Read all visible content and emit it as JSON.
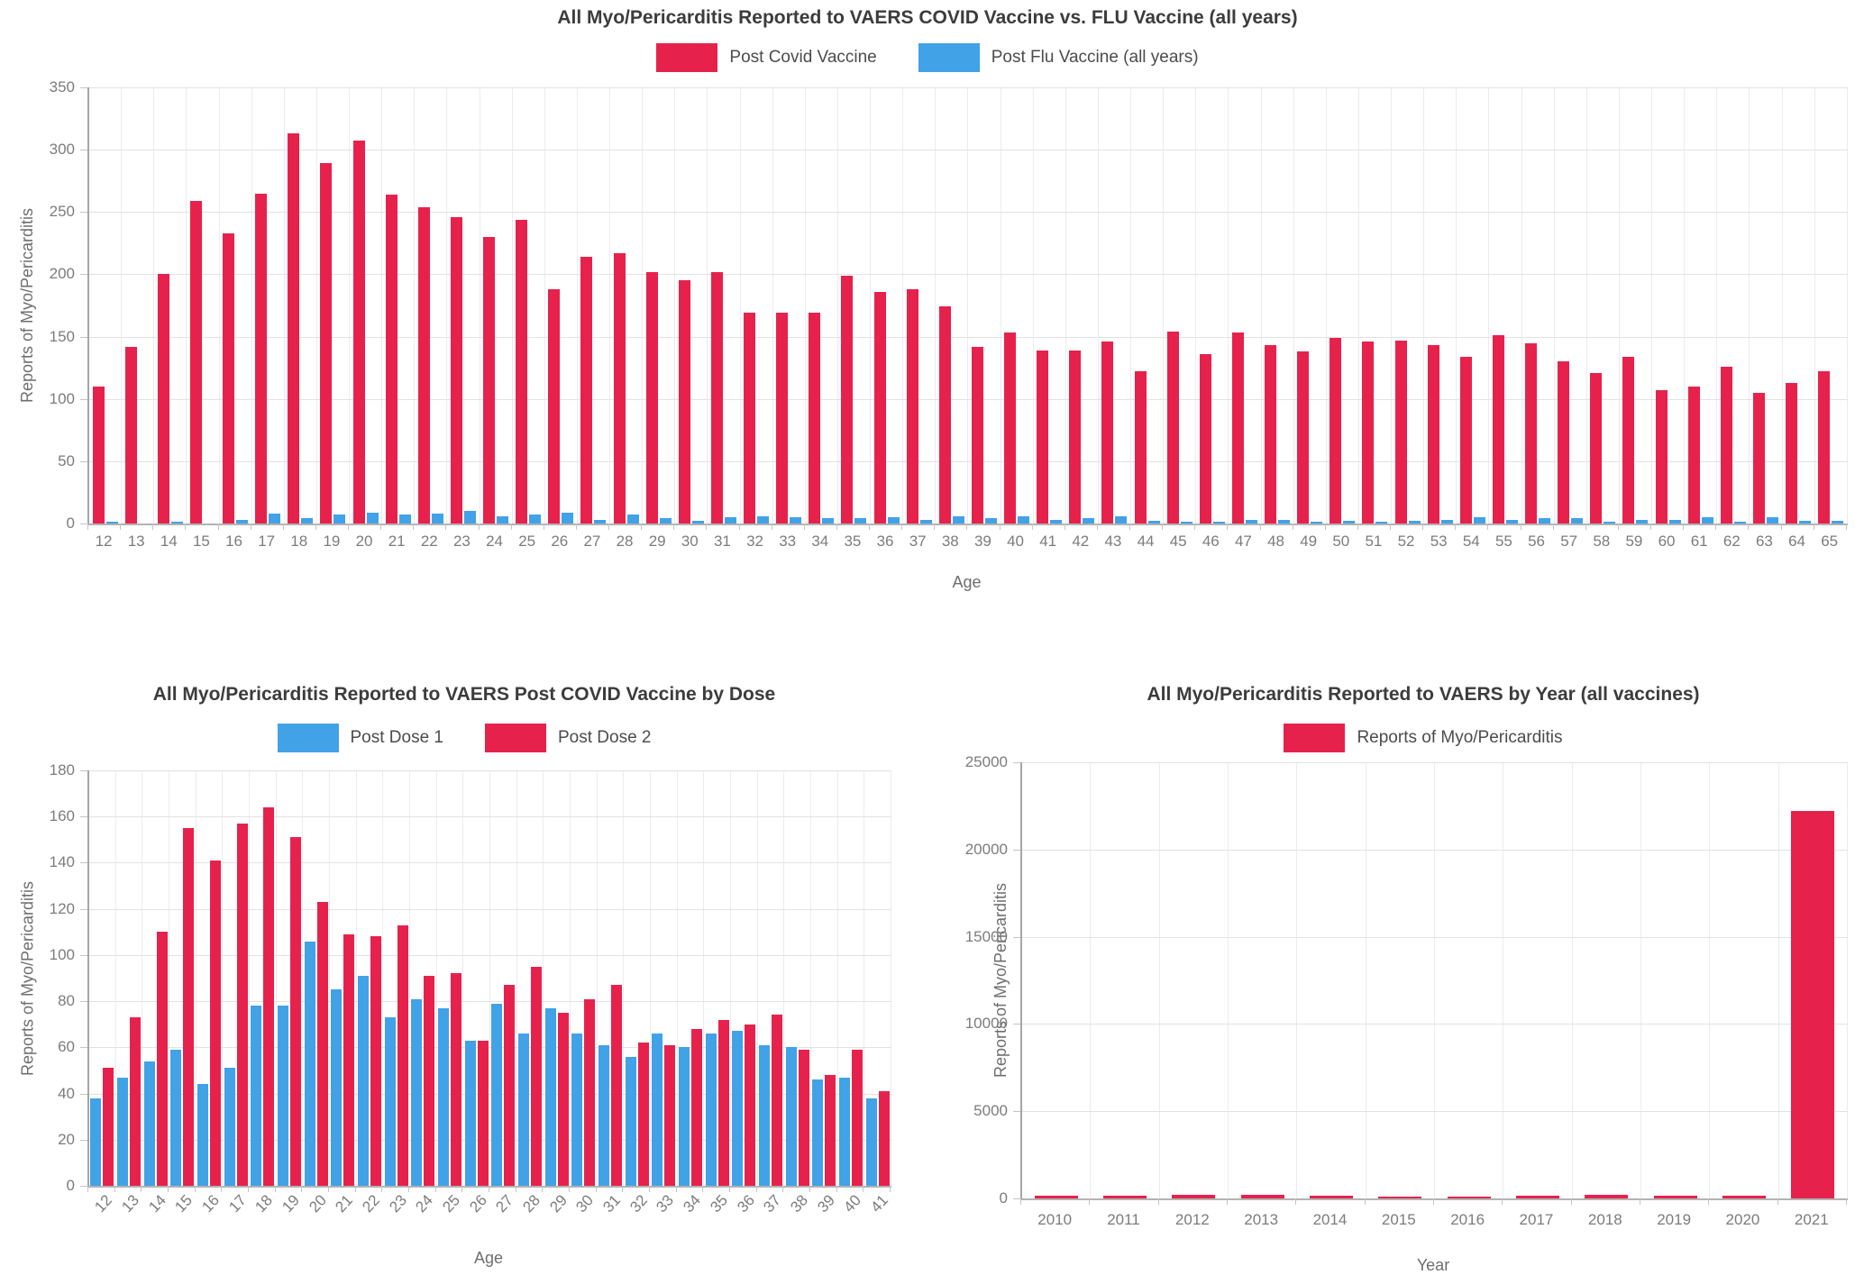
{
  "page": {
    "background": "#ffffff"
  },
  "chart_data": [
    {
      "type": "bar",
      "title": "All Myo/Pericarditis Reported to VAERS COVID Vaccine vs. FLU Vaccine (all years)",
      "xlabel": "Age",
      "ylabel": "Reports of Myo/Pericarditis",
      "ylim": [
        0,
        350
      ],
      "ystep": 50,
      "grid": true,
      "legend_position": "top",
      "categories": [
        "12",
        "13",
        "14",
        "15",
        "16",
        "17",
        "18",
        "19",
        "20",
        "21",
        "22",
        "23",
        "24",
        "25",
        "26",
        "27",
        "28",
        "29",
        "30",
        "31",
        "32",
        "33",
        "34",
        "35",
        "36",
        "37",
        "38",
        "39",
        "40",
        "41",
        "42",
        "43",
        "44",
        "45",
        "46",
        "47",
        "48",
        "49",
        "50",
        "51",
        "52",
        "53",
        "54",
        "55",
        "56",
        "57",
        "58",
        "59",
        "60",
        "61",
        "62",
        "63",
        "64",
        "65"
      ],
      "series": [
        {
          "name": "Post Covid Vaccine",
          "color": "#e6224c",
          "values": [
            110,
            142,
            200,
            259,
            233,
            265,
            313,
            289,
            307,
            264,
            254,
            246,
            230,
            244,
            188,
            214,
            217,
            202,
            195,
            202,
            169,
            169,
            169,
            199,
            186,
            188,
            174,
            142,
            153,
            139,
            139,
            146,
            122,
            154,
            136,
            153,
            143,
            138,
            149,
            146,
            147,
            143,
            134,
            151,
            145,
            130,
            121,
            134,
            107,
            110,
            126,
            105,
            113,
            122
          ]
        },
        {
          "name": "Post Flu Vaccine (all years)",
          "color": "#41a2e8",
          "values": [
            1,
            0,
            1,
            0,
            3,
            8,
            4,
            7,
            9,
            7,
            8,
            10,
            6,
            7,
            9,
            3,
            7,
            4,
            2,
            5,
            6,
            5,
            4,
            4,
            5,
            3,
            6,
            4,
            6,
            3,
            4,
            6,
            2,
            1,
            1,
            3,
            3,
            1,
            2,
            1,
            2,
            3,
            5,
            3,
            4,
            4,
            1,
            3,
            3,
            5,
            1,
            5,
            2,
            2
          ]
        }
      ]
    },
    {
      "type": "bar",
      "title": "All Myo/Pericarditis Reported to VAERS Post COVID Vaccine by Dose",
      "xlabel": "Age",
      "ylabel": "Reports of Myo/Pericarditis",
      "ylim": [
        0,
        180
      ],
      "ystep": 20,
      "grid": true,
      "legend_position": "top",
      "categories": [
        "12",
        "13",
        "14",
        "15",
        "16",
        "17",
        "18",
        "19",
        "20",
        "21",
        "22",
        "23",
        "24",
        "25",
        "26",
        "27",
        "28",
        "29",
        "30",
        "31",
        "32",
        "33",
        "34",
        "35",
        "36",
        "37",
        "38",
        "39",
        "40",
        "41"
      ],
      "series": [
        {
          "name": "Post Dose 1",
          "color": "#41a2e8",
          "values": [
            38,
            47,
            54,
            59,
            44,
            51,
            78,
            78,
            106,
            85,
            91,
            73,
            81,
            77,
            63,
            79,
            66,
            77,
            66,
            61,
            56,
            66,
            60,
            66,
            67,
            61,
            60,
            46,
            47,
            38
          ]
        },
        {
          "name": "Post Dose 2",
          "color": "#e6224c",
          "values": [
            51,
            73,
            110,
            155,
            141,
            157,
            164,
            151,
            123,
            109,
            108,
            113,
            91,
            92,
            63,
            87,
            95,
            75,
            81,
            87,
            62,
            61,
            68,
            72,
            70,
            74,
            59,
            48,
            59,
            41
          ]
        }
      ]
    },
    {
      "type": "bar",
      "title": "All Myo/Pericarditis Reported to VAERS by Year (all vaccines)",
      "xlabel": "Year",
      "ylabel": "Reports of Myo/Pericarditis",
      "ylim": [
        0,
        25000
      ],
      "ystep": 5000,
      "grid": true,
      "legend_position": "top",
      "categories": [
        "2010",
        "2011",
        "2012",
        "2013",
        "2014",
        "2015",
        "2016",
        "2017",
        "2018",
        "2019",
        "2020",
        "2021"
      ],
      "series": [
        {
          "name": "Reports of Myo/Pericarditis",
          "color": "#e6224c",
          "values": [
            140,
            140,
            205,
            205,
            155,
            85,
            120,
            140,
            205,
            140,
            140,
            22200
          ]
        }
      ]
    }
  ]
}
